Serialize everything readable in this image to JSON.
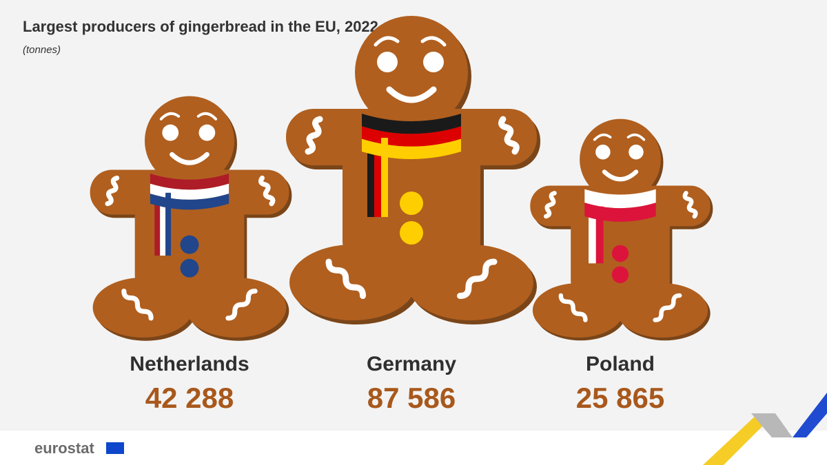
{
  "chart_data": {
    "type": "pictogram",
    "title": "Largest producers of gingerbread in the EU, 2022",
    "subtitle": "(tonnes)",
    "categories": [
      "Netherlands",
      "Germany",
      "Poland"
    ],
    "values": [
      42288,
      87586,
      25865
    ],
    "value_labels": [
      "42 288",
      "87 586",
      "25 865"
    ],
    "color": "#b05f1f",
    "scarf_colors": [
      [
        "#ae1c28",
        "#ffffff",
        "#21468b"
      ],
      [
        "#1a1a1a",
        "#dd0000",
        "#ffce00"
      ],
      [
        "#ffffff",
        "#dc143c"
      ]
    ],
    "button_colors": [
      "#21468b",
      "#ffce00",
      "#dc143c"
    ],
    "source": "eurostat"
  }
}
